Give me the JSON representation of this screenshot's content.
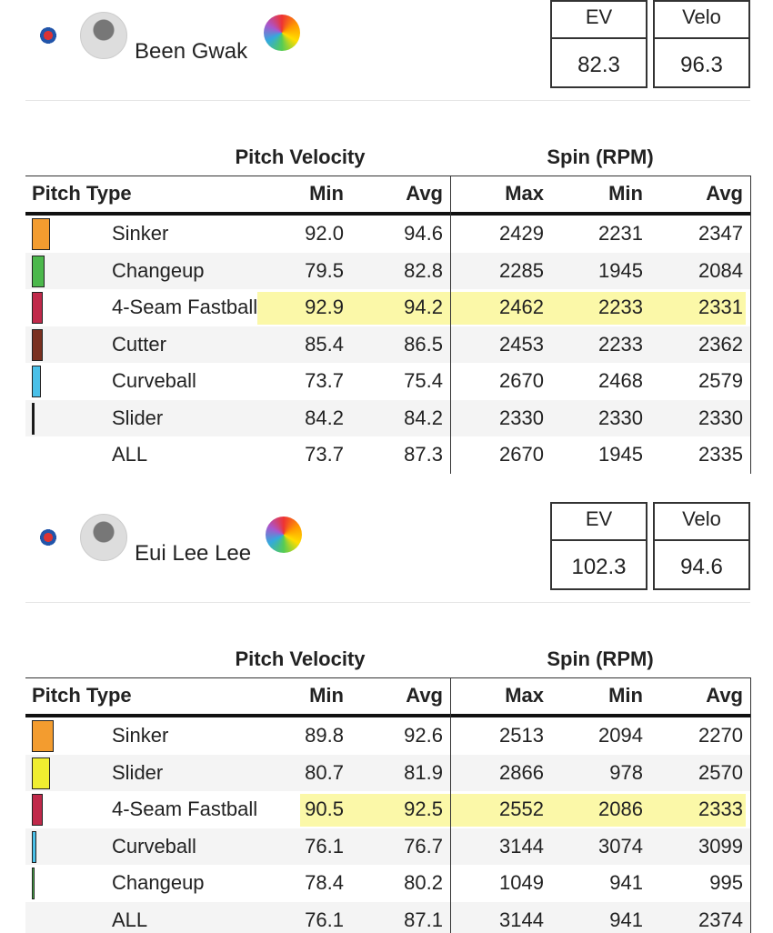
{
  "players": [
    {
      "name": "Been Gwak",
      "stats": {
        "headers": [
          "EV",
          "Velo"
        ],
        "values": [
          "82.3",
          "96.3"
        ]
      },
      "table": {
        "group_headers": [
          "Pitch Velocity",
          "Spin (RPM)"
        ],
        "columns": [
          "Pitch Type",
          "Min",
          "Avg",
          "Max",
          "Min",
          "Avg"
        ],
        "rows": [
          {
            "cells": [
              "Sinker",
              "92.0",
              "94.6",
              "2429",
              "2231",
              "2347"
            ],
            "color": "#f39c2f"
          },
          {
            "cells": [
              "Changeup",
              "79.5",
              "82.8",
              "2285",
              "1945",
              "2084"
            ],
            "color": "#4cb84c"
          },
          {
            "cells": [
              "4-Seam Fastball",
              "92.9",
              "94.2",
              "2462",
              "2233",
              "2331"
            ],
            "color": "#c0294a",
            "highlighted": true
          },
          {
            "cells": [
              "Cutter",
              "85.4",
              "86.5",
              "2453",
              "2233",
              "2362"
            ],
            "color": "#7a3020"
          },
          {
            "cells": [
              "Curveball",
              "73.7",
              "75.4",
              "2670",
              "2468",
              "2579"
            ],
            "color": "#4ac0e8"
          },
          {
            "cells": [
              "Slider",
              "84.2",
              "84.2",
              "2330",
              "2330",
              "2330"
            ],
            "color": "#111111"
          },
          {
            "cells": [
              "ALL",
              "73.7",
              "87.3",
              "2670",
              "1945",
              "2335"
            ]
          }
        ]
      }
    },
    {
      "name": "Eui Lee Lee",
      "stats": {
        "headers": [
          "EV",
          "Velo"
        ],
        "values": [
          "102.3",
          "94.6"
        ]
      },
      "table": {
        "group_headers": [
          "Pitch Velocity",
          "Spin (RPM)"
        ],
        "columns": [
          "Pitch Type",
          "Min",
          "Avg",
          "Max",
          "Min",
          "Avg"
        ],
        "rows": [
          {
            "cells": [
              "Sinker",
              "89.8",
              "92.6",
              "2513",
              "2094",
              "2270"
            ],
            "color": "#f39c2f"
          },
          {
            "cells": [
              "Slider",
              "80.7",
              "81.9",
              "2866",
              "978",
              "2570"
            ],
            "color": "#f0ee30"
          },
          {
            "cells": [
              "4-Seam Fastball",
              "90.5",
              "92.5",
              "2552",
              "2086",
              "2333"
            ],
            "color": "#c0294a",
            "highlighted": true
          },
          {
            "cells": [
              "Curveball",
              "76.1",
              "76.7",
              "3144",
              "3074",
              "3099"
            ],
            "color": "#4ac0e8"
          },
          {
            "cells": [
              "Changeup",
              "78.4",
              "80.2",
              "1049",
              "941",
              "995"
            ],
            "color": "#4cb84c"
          },
          {
            "cells": [
              "ALL",
              "76.1",
              "87.1",
              "3144",
              "941",
              "2374"
            ]
          }
        ]
      }
    }
  ]
}
